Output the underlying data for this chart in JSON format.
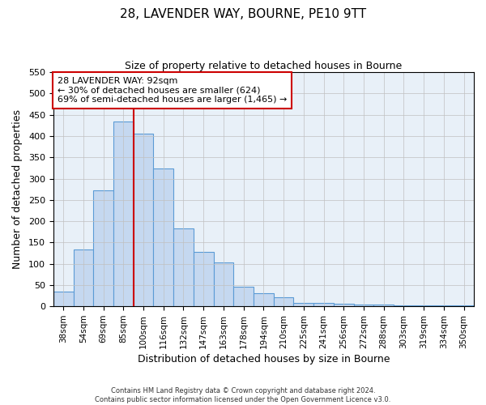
{
  "title": "28, LAVENDER WAY, BOURNE, PE10 9TT",
  "subtitle": "Size of property relative to detached houses in Bourne",
  "xlabel": "Distribution of detached houses by size in Bourne",
  "ylabel": "Number of detached properties",
  "bar_labels": [
    "38sqm",
    "54sqm",
    "69sqm",
    "85sqm",
    "100sqm",
    "116sqm",
    "132sqm",
    "147sqm",
    "163sqm",
    "178sqm",
    "194sqm",
    "210sqm",
    "225sqm",
    "241sqm",
    "256sqm",
    "272sqm",
    "288sqm",
    "303sqm",
    "319sqm",
    "334sqm",
    "350sqm"
  ],
  "bar_values": [
    35,
    133,
    272,
    435,
    405,
    323,
    184,
    128,
    104,
    46,
    30,
    21,
    8,
    8,
    6,
    5,
    4,
    3,
    2,
    2,
    2
  ],
  "bar_color": "#c5d8f0",
  "bar_edge_color": "#5b9bd5",
  "vline_x": 3.5,
  "vline_color": "#cc0000",
  "annotation_line1": "28 LAVENDER WAY: 92sqm",
  "annotation_line2": "← 30% of detached houses are smaller (624)",
  "annotation_line3": "69% of semi-detached houses are larger (1,465) →",
  "annotation_box_color": "#ffffff",
  "annotation_box_edge_color": "#cc0000",
  "ylim": [
    0,
    550
  ],
  "yticks": [
    0,
    50,
    100,
    150,
    200,
    250,
    300,
    350,
    400,
    450,
    500,
    550
  ],
  "footer1": "Contains HM Land Registry data © Crown copyright and database right 2024.",
  "footer2": "Contains public sector information licensed under the Open Government Licence v3.0.",
  "background_color": "#ffffff",
  "axes_bg_color": "#e8f0f8",
  "grid_color": "#c0c0c0"
}
